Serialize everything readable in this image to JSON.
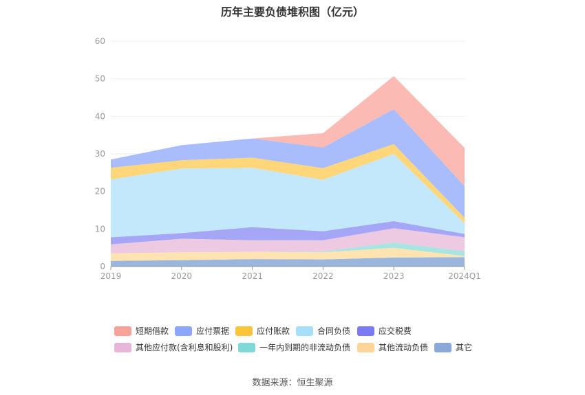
{
  "chart_data": {
    "type": "area",
    "title": "历年主要负债堆积图（亿元）",
    "categories": [
      "2019",
      "2020",
      "2021",
      "2022",
      "2023",
      "2024Q1"
    ],
    "ylim": [
      0,
      60
    ],
    "yticks": [
      0,
      10,
      20,
      30,
      40,
      50,
      60
    ],
    "grid": true,
    "legend_position": "bottom",
    "stacked": true,
    "series": [
      {
        "name": "其它",
        "color": "#9bb6de",
        "values": [
          1.5,
          1.7,
          2.0,
          1.9,
          2.4,
          2.5
        ]
      },
      {
        "name": "其他流动负债",
        "color": "#ffe3b0",
        "values": [
          2.0,
          2.1,
          1.9,
          1.9,
          2.6,
          0.3
        ]
      },
      {
        "name": "一年内到期的非流动负债",
        "color": "#a8e4e2",
        "values": [
          0.0,
          0.0,
          0.0,
          0.2,
          1.4,
          1.3
        ]
      },
      {
        "name": "其他应付款(含利息和股利)",
        "color": "#eec9e2",
        "values": [
          2.4,
          3.6,
          3.1,
          3.0,
          3.8,
          3.7
        ]
      },
      {
        "name": "应交税费",
        "color": "#a5a6f6",
        "values": [
          1.9,
          1.5,
          3.5,
          2.4,
          1.9,
          0.9
        ]
      },
      {
        "name": "合同负债",
        "color": "#c4e8fb",
        "values": [
          15.4,
          17.2,
          15.8,
          13.7,
          17.9,
          2.8
        ]
      },
      {
        "name": "应付账款",
        "color": "#ffd77a",
        "values": [
          3.1,
          2.2,
          2.7,
          3.1,
          2.6,
          1.5
        ]
      },
      {
        "name": "应付票据",
        "color": "#a9bcfb",
        "values": [
          2.2,
          4.0,
          5.1,
          5.5,
          9.3,
          8.4
        ]
      },
      {
        "name": "短期借款",
        "color": "#fbbab3",
        "values": [
          0.0,
          0.0,
          0.0,
          3.8,
          8.8,
          10.2
        ]
      }
    ],
    "legend": [
      {
        "name": "短期借款",
        "color": "#f8a29a"
      },
      {
        "name": "应付票据",
        "color": "#8ca6fa"
      },
      {
        "name": "应付账款",
        "color": "#fbc53b"
      },
      {
        "name": "合同负债",
        "color": "#a6dffa"
      },
      {
        "name": "应交税费",
        "color": "#7a7bf3"
      },
      {
        "name": "其他应付款(含利息和股利)",
        "color": "#e7b6d8"
      },
      {
        "name": "一年内到期的非流动负债",
        "color": "#7fd9d6"
      },
      {
        "name": "其他流动负债",
        "color": "#fed598"
      },
      {
        "name": "其它",
        "color": "#8aa9d8"
      }
    ]
  },
  "source": "数据来源：恒生聚源"
}
